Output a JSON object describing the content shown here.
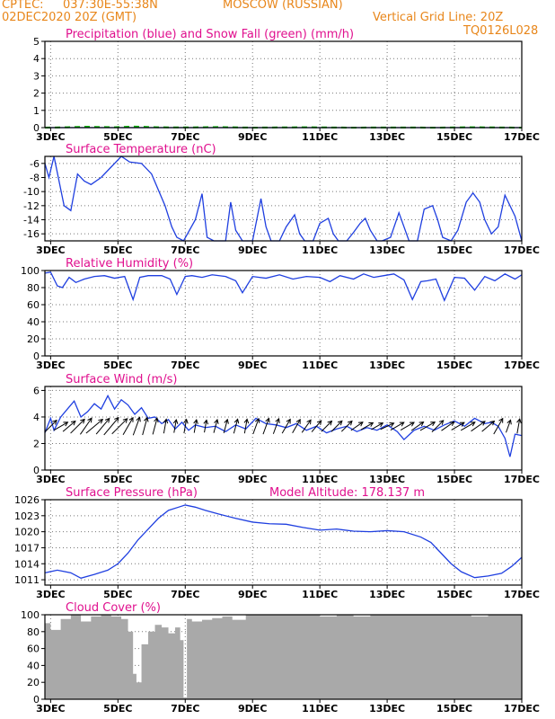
{
  "header": {
    "source": "CPTEC:",
    "coords": "037:30E-55:38N",
    "location": "MOSCOW (RUSSIAN)",
    "run": "02DEC2020 20Z (GMT)",
    "grid_note": "Vertical Grid Line: 20Z",
    "code": "TQ0126L028"
  },
  "colors": {
    "accent": "#e8861a",
    "title": "#e0108e",
    "series": "#1f3fe0",
    "snow": "#00b000",
    "cloud": "#a9a9a9",
    "wind_arrow": "#000000"
  },
  "x_axis_labels": [
    "3DEC",
    "5DEC",
    "7DEC",
    "9DEC",
    "11DEC",
    "13DEC",
    "15DEC",
    "17DEC"
  ],
  "chart_data": [
    {
      "type": "line",
      "title": "Precipitation (blue) and Snow Fall (green) (mm/h)",
      "ylim": [
        0,
        5
      ],
      "yticks": [
        0,
        1,
        2,
        3,
        4,
        5
      ],
      "grid": true,
      "series": [
        {
          "name": "Precipitation",
          "x": [
            2.83,
            17
          ],
          "y": [
            0,
            0
          ]
        },
        {
          "name": "Snow Fall",
          "x": [
            2.83,
            3.5,
            4.0,
            4.9,
            5.5,
            6.2,
            7.0,
            8.0,
            9.0,
            10.5,
            12.0,
            13.0,
            14.5,
            15.5,
            17
          ],
          "y": [
            0,
            0.02,
            0.05,
            0.02,
            0.06,
            0.02,
            0.01,
            0.03,
            0.0,
            0.02,
            0.0,
            0.01,
            0.0,
            0.02,
            0
          ]
        }
      ]
    },
    {
      "type": "line",
      "title": "Surface Temperature (nC)",
      "ylim": [
        -17,
        -5
      ],
      "yticks": [
        -16,
        -14,
        -12,
        -10,
        -8,
        -6
      ],
      "grid": true,
      "series": [
        {
          "name": "Surface Temperature",
          "x": [
            2.83,
            2.95,
            3.1,
            3.4,
            3.6,
            3.8,
            4.0,
            4.2,
            4.5,
            4.8,
            5.1,
            5.35,
            5.7,
            6.0,
            6.4,
            6.6,
            6.75,
            6.95,
            7.3,
            7.5,
            7.65,
            7.85,
            8.2,
            8.35,
            8.5,
            8.7,
            9.0,
            9.25,
            9.4,
            9.55,
            9.8,
            10.0,
            10.25,
            10.4,
            10.55,
            10.8,
            11.0,
            11.25,
            11.4,
            11.55,
            11.8,
            12.0,
            12.2,
            12.35,
            12.5,
            12.7,
            12.85,
            13.1,
            13.35,
            13.5,
            13.65,
            13.9,
            14.1,
            14.35,
            14.5,
            14.65,
            14.9,
            15.1,
            15.35,
            15.55,
            15.75,
            15.9,
            16.1,
            16.3,
            16.5,
            16.8,
            17.0
          ],
          "y": [
            -6.0,
            -8.0,
            -5.0,
            -12.0,
            -12.7,
            -7.5,
            -8.5,
            -9.0,
            -8.0,
            -6.5,
            -5.0,
            -5.8,
            -6.0,
            -7.5,
            -12.0,
            -15.0,
            -16.5,
            -17.0,
            -14.0,
            -10.3,
            -16.5,
            -17.0,
            -17.0,
            -11.5,
            -15.5,
            -17.0,
            -17.0,
            -11.0,
            -15.0,
            -17.0,
            -17.0,
            -15.0,
            -13.3,
            -16.0,
            -17.0,
            -17.0,
            -14.5,
            -13.8,
            -16.0,
            -17.0,
            -17.0,
            -15.8,
            -14.5,
            -13.8,
            -15.5,
            -17.0,
            -17.0,
            -16.5,
            -13.0,
            -15.0,
            -17.0,
            -17.0,
            -12.5,
            -12.0,
            -14.0,
            -16.5,
            -17.0,
            -15.5,
            -11.5,
            -10.2,
            -11.5,
            -14.0,
            -16.0,
            -15.0,
            -10.5,
            -13.5,
            -17.0
          ]
        }
      ]
    },
    {
      "type": "line",
      "title": "Relative Humidity (%)",
      "ylim": [
        0,
        100
      ],
      "yticks": [
        0,
        20,
        40,
        60,
        80,
        100
      ],
      "grid": true,
      "series": [
        {
          "name": "Relative Humidity",
          "x": [
            2.83,
            3.0,
            3.2,
            3.35,
            3.55,
            3.75,
            4.0,
            4.3,
            4.6,
            4.9,
            5.2,
            5.45,
            5.65,
            5.9,
            6.3,
            6.55,
            6.75,
            7.0,
            7.2,
            7.5,
            7.8,
            8.2,
            8.5,
            8.7,
            9.0,
            9.4,
            9.8,
            10.2,
            10.6,
            11.0,
            11.3,
            11.6,
            12.0,
            12.3,
            12.6,
            12.9,
            13.2,
            13.5,
            13.75,
            14.0,
            14.2,
            14.45,
            14.7,
            15.0,
            15.3,
            15.6,
            15.9,
            16.2,
            16.5,
            16.8,
            17.0
          ],
          "y": [
            97,
            98,
            82,
            80,
            92,
            86,
            90,
            93,
            94,
            91,
            93,
            66,
            92,
            94,
            94,
            90,
            72,
            93,
            94,
            92,
            95,
            93,
            88,
            74,
            93,
            91,
            95,
            90,
            93,
            92,
            87,
            94,
            90,
            96,
            92,
            94,
            96,
            89,
            66,
            87,
            88,
            90,
            65,
            92,
            91,
            77,
            93,
            88,
            96,
            90,
            95
          ]
        }
      ]
    },
    {
      "type": "line",
      "title": "Surface Wind (m/s)",
      "ylim": [
        0,
        6.3
      ],
      "yticks": [
        0,
        2,
        4,
        6
      ],
      "grid": true,
      "series": [
        {
          "name": "Surface Wind",
          "x": [
            2.83,
            3.0,
            3.1,
            3.3,
            3.5,
            3.7,
            3.9,
            4.1,
            4.3,
            4.5,
            4.7,
            4.9,
            5.1,
            5.3,
            5.5,
            5.7,
            5.9,
            6.1,
            6.3,
            6.5,
            6.7,
            6.9,
            7.1,
            7.3,
            7.6,
            7.9,
            8.2,
            8.5,
            8.8,
            9.1,
            9.4,
            9.7,
            10.0,
            10.3,
            10.6,
            10.9,
            11.2,
            11.5,
            11.8,
            12.1,
            12.4,
            12.7,
            13.0,
            13.3,
            13.5,
            13.8,
            14.1,
            14.4,
            14.7,
            15.0,
            15.3,
            15.6,
            15.9,
            16.1,
            16.3,
            16.5,
            16.65,
            16.8,
            17.0
          ],
          "y": [
            2.8,
            3.9,
            3.0,
            4.0,
            4.6,
            5.2,
            4.0,
            4.4,
            5.0,
            4.6,
            5.6,
            4.6,
            5.3,
            4.9,
            4.2,
            4.7,
            3.9,
            4.0,
            3.5,
            3.8,
            3.1,
            3.6,
            3.0,
            3.4,
            3.2,
            3.3,
            2.9,
            3.4,
            3.1,
            3.9,
            3.5,
            3.4,
            3.2,
            3.5,
            3.0,
            3.3,
            2.8,
            3.1,
            3.3,
            2.9,
            3.2,
            3.0,
            3.4,
            2.9,
            2.3,
            3.0,
            3.3,
            3.0,
            3.4,
            3.7,
            3.3,
            3.9,
            3.5,
            3.6,
            3.3,
            2.4,
            1.0,
            2.7,
            2.6
          ]
        }
      ]
    },
    {
      "type": "line",
      "title": "Surface Pressure (hPa)",
      "annotation": "Model Altitude: 178.137 m",
      "ylim": [
        1010,
        1026
      ],
      "yticks": [
        1011,
        1014,
        1017,
        1020,
        1023,
        1026
      ],
      "grid": true,
      "series": [
        {
          "name": "Surface Pressure",
          "x": [
            2.83,
            3.2,
            3.6,
            3.9,
            4.3,
            4.7,
            5.0,
            5.3,
            5.6,
            5.9,
            6.2,
            6.5,
            6.8,
            7.0,
            7.3,
            7.6,
            8.0,
            8.5,
            9.0,
            9.5,
            10.0,
            10.5,
            11.0,
            11.5,
            12.0,
            12.5,
            13.0,
            13.5,
            14.0,
            14.3,
            14.6,
            14.9,
            15.2,
            15.6,
            16.0,
            16.4,
            16.7,
            17.0
          ],
          "y": [
            1012.3,
            1012.8,
            1012.3,
            1011.3,
            1012.0,
            1012.8,
            1014.0,
            1016.0,
            1018.5,
            1020.5,
            1022.5,
            1024.0,
            1024.6,
            1025.0,
            1024.6,
            1024.0,
            1023.3,
            1022.5,
            1021.8,
            1021.5,
            1021.4,
            1020.8,
            1020.3,
            1020.5,
            1020.1,
            1020.0,
            1020.2,
            1020.0,
            1019.0,
            1018.0,
            1016.0,
            1014.0,
            1012.5,
            1011.4,
            1011.7,
            1012.2,
            1013.5,
            1015.2
          ]
        }
      ]
    },
    {
      "type": "area",
      "title": "Cloud Cover (%)",
      "ylim": [
        0,
        100
      ],
      "yticks": [
        0,
        20,
        40,
        60,
        80,
        100
      ],
      "grid": true,
      "series": [
        {
          "name": "Cloud Cover",
          "x": [
            2.83,
            3.0,
            3.3,
            3.6,
            3.9,
            4.2,
            4.5,
            4.8,
            5.1,
            5.3,
            5.45,
            5.55,
            5.7,
            5.9,
            6.1,
            6.3,
            6.5,
            6.7,
            6.85,
            6.95,
            7.05,
            7.2,
            7.5,
            7.8,
            8.1,
            8.4,
            8.8,
            9.2,
            9.6,
            10.0,
            10.5,
            11.0,
            11.5,
            12.0,
            12.5,
            13.0,
            13.5,
            14.0,
            14.5,
            15.0,
            15.5,
            16.0,
            16.5,
            17.0
          ],
          "y": [
            90,
            82,
            95,
            100,
            92,
            98,
            100,
            98,
            95,
            80,
            30,
            20,
            65,
            80,
            88,
            85,
            78,
            85,
            70,
            2,
            95,
            92,
            94,
            96,
            98,
            94,
            100,
            100,
            100,
            100,
            100,
            98,
            100,
            98,
            100,
            100,
            100,
            100,
            100,
            100,
            98,
            100,
            100,
            92
          ]
        }
      ]
    }
  ],
  "wind_arrows": {
    "x": [
      3.0,
      3.3,
      3.55,
      3.8,
      4.05,
      4.3,
      4.55,
      4.8,
      5.05,
      5.3,
      5.55,
      5.8,
      6.1,
      6.4,
      6.7,
      7.0,
      7.3,
      7.6,
      7.9,
      8.2,
      8.5,
      8.8,
      9.1,
      9.4,
      9.7,
      10.0,
      10.3,
      10.6,
      10.9,
      11.2,
      11.5,
      11.8,
      12.1,
      12.4,
      12.7,
      13.0,
      13.3,
      13.6,
      13.9,
      14.2,
      14.5,
      14.8,
      15.1,
      15.4,
      15.7,
      16.0,
      16.3,
      16.6,
      16.9
    ],
    "speed": [
      3.2,
      3.0,
      3.0,
      4.0,
      4.0,
      4.5,
      4.2,
      4.8,
      4.5,
      4.0,
      3.8,
      3.5,
      3.2,
      2.5,
      2.2,
      2.4,
      2.2,
      2.0,
      2.3,
      2.4,
      2.6,
      2.5,
      3.0,
      3.2,
      3.0,
      3.0,
      2.8,
      2.8,
      2.6,
      2.6,
      2.7,
      2.6,
      2.5,
      2.4,
      2.2,
      2.6,
      2.8,
      2.8,
      2.6,
      3.2,
      3.0,
      2.8,
      2.6,
      3.0,
      3.2,
      3.0,
      3.5,
      2.2,
      2.6
    ],
    "dir_deg": [
      135,
      150,
      140,
      135,
      125,
      140,
      130,
      130,
      135,
      120,
      110,
      105,
      105,
      100,
      100,
      100,
      100,
      100,
      105,
      105,
      105,
      100,
      110,
      110,
      110,
      120,
      120,
      125,
      130,
      135,
      135,
      135,
      145,
      150,
      150,
      155,
      150,
      150,
      145,
      150,
      135,
      145,
      150,
      150,
      145,
      140,
      120,
      110,
      100
    ]
  }
}
